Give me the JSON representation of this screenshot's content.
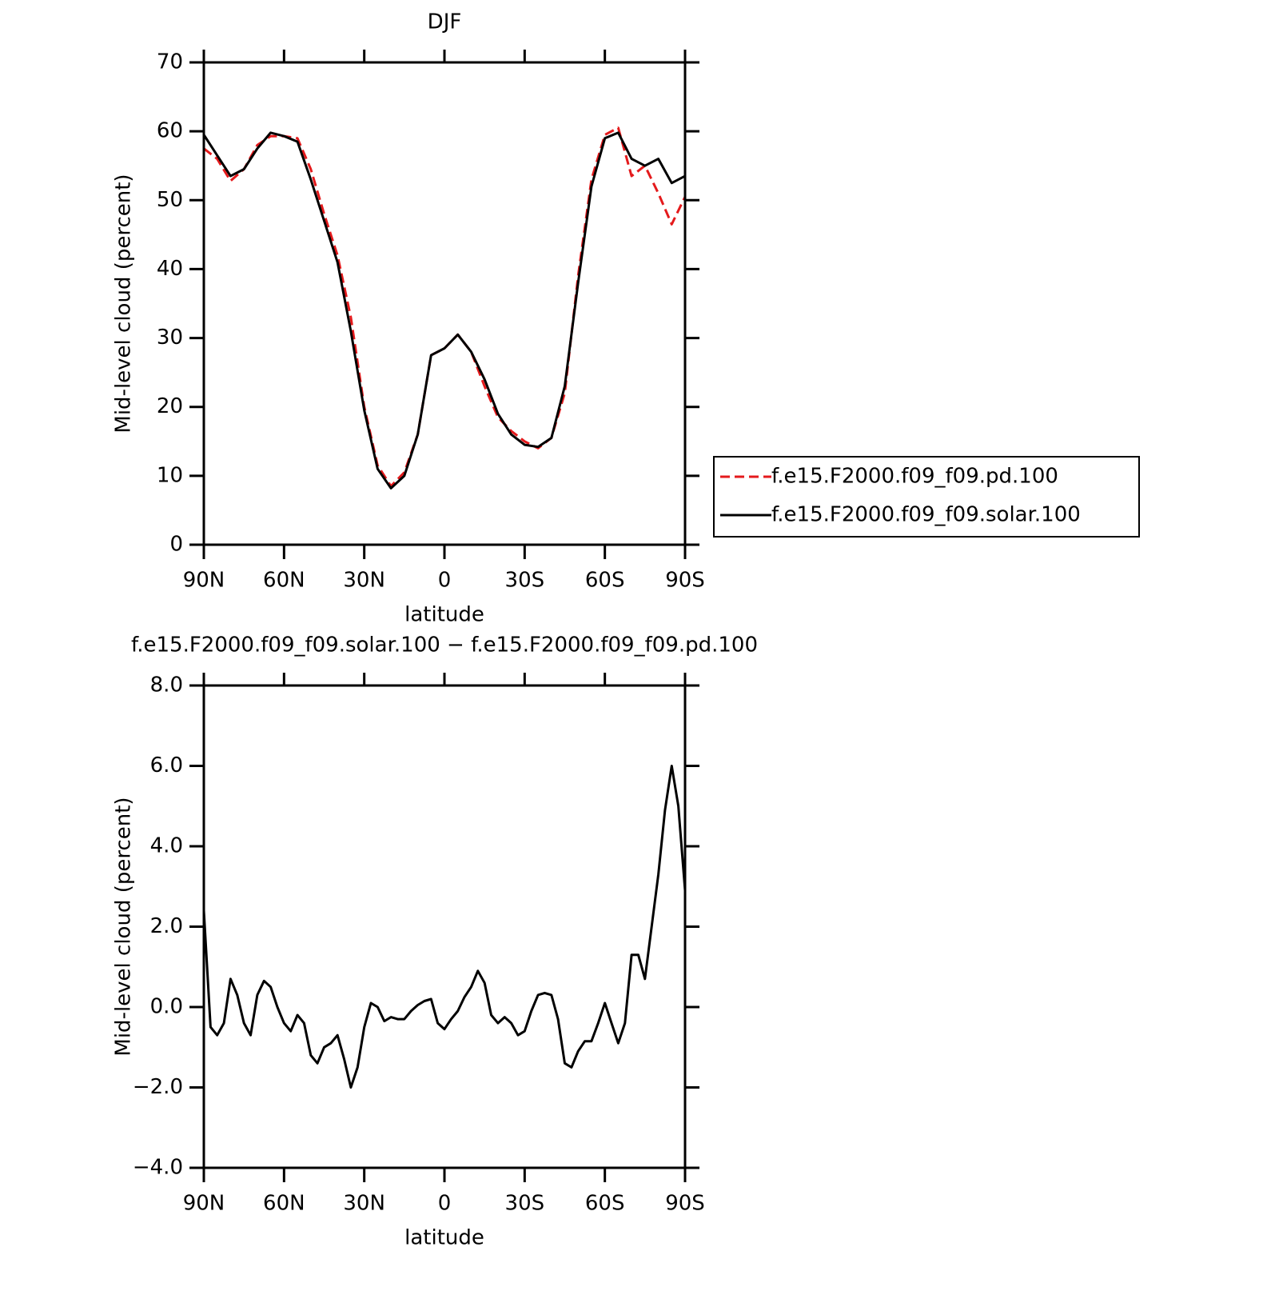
{
  "chart_data": [
    {
      "type": "line",
      "title": "DJF",
      "x_label": "latitude",
      "y_label": "Mid-level cloud (percent)",
      "x": [
        90,
        85,
        80,
        75,
        70,
        65,
        60,
        55,
        50,
        45,
        40,
        35,
        30,
        25,
        20,
        15,
        10,
        5,
        0,
        -5,
        -10,
        -15,
        -20,
        -25,
        -30,
        -35,
        -40,
        -45,
        -50,
        -55,
        -60,
        -65,
        -70,
        -75,
        -80,
        -85,
        -90
      ],
      "series": [
        {
          "name": "f.e15.F2000.f09_f09.pd.100",
          "color": "#e41a1c",
          "dash": true,
          "values": [
            57.5,
            56,
            52.8,
            54.5,
            58,
            59.3,
            59.3,
            59,
            54.5,
            48,
            42,
            33,
            20,
            11.5,
            8.5,
            10.5,
            16,
            27.5,
            28.5,
            30.5,
            28,
            23,
            18.5,
            16.5,
            15,
            14,
            15.5,
            22,
            39,
            53,
            59.5,
            60.5,
            53.5,
            55,
            51,
            46.5,
            50.5
          ]
        },
        {
          "name": "f.e15.F2000.f09_f09.solar.100",
          "color": "#000000",
          "dash": false,
          "values": [
            59.5,
            56.5,
            53.5,
            54.5,
            57.5,
            59.8,
            59.3,
            58.5,
            53,
            47,
            41,
            31,
            19.5,
            11,
            8.2,
            10,
            16,
            27.5,
            28.5,
            30.5,
            28,
            24,
            19,
            16,
            14.5,
            14.2,
            15.5,
            23,
            38,
            52,
            59,
            59.8,
            56,
            55,
            56,
            52.5,
            53.5
          ]
        }
      ],
      "xlim": [
        90,
        -90
      ],
      "xticks": [
        {
          "value": 90,
          "label": "90N"
        },
        {
          "value": 60,
          "label": "60N"
        },
        {
          "value": 30,
          "label": "30N"
        },
        0,
        {
          "value": -30,
          "label": "30S"
        },
        {
          "value": -60,
          "label": "60S"
        },
        {
          "value": -90,
          "label": "90S"
        }
      ],
      "ylim": [
        0,
        70
      ],
      "yticks": [
        0,
        10,
        20,
        30,
        40,
        50,
        60,
        70
      ],
      "legend": "right"
    },
    {
      "type": "line",
      "title": "f.e15.F2000.f09_f09.solar.100 − f.e15.F2000.f09_f09.pd.100",
      "x_label": "latitude",
      "y_label": "Mid-level cloud (percent)",
      "x": [
        90,
        87.5,
        85,
        82.5,
        80,
        77.5,
        75,
        72.5,
        70,
        67.5,
        65,
        62.5,
        60,
        57.5,
        55,
        52.5,
        50,
        47.5,
        45,
        42.5,
        40,
        37.5,
        35,
        32.5,
        30,
        27.5,
        25,
        22.5,
        20,
        17.5,
        15,
        12.5,
        10,
        7.5,
        5,
        2.5,
        0,
        -2.5,
        -5,
        -7.5,
        -10,
        -12.5,
        -15,
        -17.5,
        -20,
        -22.5,
        -25,
        -27.5,
        -30,
        -32.5,
        -35,
        -37.5,
        -40,
        -42.5,
        -45,
        -47.5,
        -50,
        -52.5,
        -55,
        -57.5,
        -60,
        -62.5,
        -65,
        -67.5,
        -70,
        -72.5,
        -75,
        -77.5,
        -80,
        -82.5,
        -85,
        -87.5,
        -90
      ],
      "series": [
        {
          "color": "#000000",
          "dash": false,
          "values": [
            2.4,
            -0.5,
            -0.7,
            -0.4,
            0.7,
            0.3,
            -0.4,
            -0.7,
            0.3,
            0.65,
            0.5,
            0.0,
            -0.4,
            -0.6,
            -0.2,
            -0.4,
            -1.2,
            -1.4,
            -1.0,
            -0.9,
            -0.7,
            -1.3,
            -2.0,
            -1.5,
            -0.5,
            0.1,
            0.0,
            -0.35,
            -0.25,
            -0.3,
            -0.3,
            -0.1,
            0.05,
            0.15,
            0.2,
            -0.4,
            -0.55,
            -0.3,
            -0.1,
            0.25,
            0.5,
            0.9,
            0.6,
            -0.2,
            -0.4,
            -0.25,
            -0.4,
            -0.7,
            -0.6,
            -0.1,
            0.3,
            0.35,
            0.3,
            -0.3,
            -1.4,
            -1.5,
            -1.1,
            -0.85,
            -0.85,
            -0.4,
            0.1,
            -0.4,
            -0.9,
            -0.4,
            1.3,
            1.3,
            0.7,
            2.0,
            3.3,
            4.9,
            6.0,
            5.0,
            2.9
          ]
        }
      ],
      "xlim": [
        90,
        -90
      ],
      "xticks": [
        {
          "value": 90,
          "label": "90N"
        },
        {
          "value": 60,
          "label": "60N"
        },
        {
          "value": 30,
          "label": "30N"
        },
        0,
        {
          "value": -30,
          "label": "30S"
        },
        {
          "value": -60,
          "label": "60S"
        },
        {
          "value": -90,
          "label": "90S"
        }
      ],
      "ylim": [
        -4,
        8
      ],
      "yticks": [
        {
          "value": -4,
          "label": "−4.0"
        },
        {
          "value": -2,
          "label": "−2.0"
        },
        {
          "value": 0,
          "label": "0.0"
        },
        {
          "value": 2,
          "label": "2.0"
        },
        {
          "value": 4,
          "label": "4.0"
        },
        {
          "value": 6,
          "label": "6.0"
        },
        {
          "value": 8,
          "label": "8.0"
        }
      ]
    }
  ]
}
